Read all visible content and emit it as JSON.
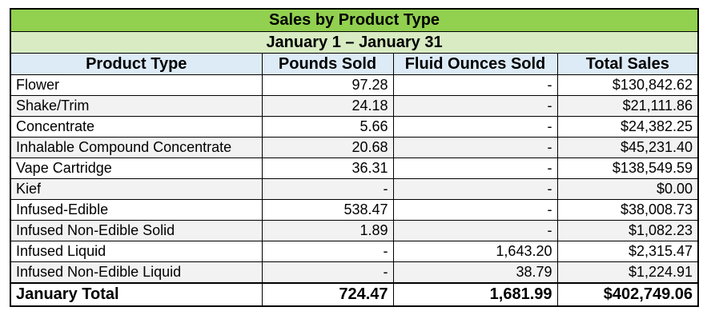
{
  "title": "Sales by Product Type",
  "subtitle": "January 1 – January 31",
  "columns": [
    "Product Type",
    "Pounds Sold",
    "Fluid Ounces Sold",
    "Total Sales"
  ],
  "rows": [
    {
      "product": "Flower",
      "pounds": "97.28",
      "fluid_oz": "-",
      "total": "$130,842.62"
    },
    {
      "product": "Shake/Trim",
      "pounds": "24.18",
      "fluid_oz": "-",
      "total": "$21,111.86"
    },
    {
      "product": "Concentrate",
      "pounds": "5.66",
      "fluid_oz": "-",
      "total": "$24,382.25"
    },
    {
      "product": "Inhalable Compound Concentrate",
      "pounds": "20.68",
      "fluid_oz": "-",
      "total": "$45,231.40"
    },
    {
      "product": "Vape Cartridge",
      "pounds": "36.31",
      "fluid_oz": "-",
      "total": "$138,549.59"
    },
    {
      "product": "Kief",
      "pounds": "-",
      "fluid_oz": "-",
      "total": "$0.00"
    },
    {
      "product": "Infused-Edible",
      "pounds": "538.47",
      "fluid_oz": "-",
      "total": "$38,008.73"
    },
    {
      "product": "Infused Non-Edible Solid",
      "pounds": "1.89",
      "fluid_oz": "-",
      "total": "$1,082.23"
    },
    {
      "product": "Infused Liquid",
      "pounds": "-",
      "fluid_oz": "1,643.20",
      "total": "$2,315.47"
    },
    {
      "product": "Infused Non-Edible Liquid",
      "pounds": "-",
      "fluid_oz": "38.79",
      "total": "$1,224.91"
    }
  ],
  "total": {
    "label": "January Total",
    "pounds": "724.47",
    "fluid_oz": "1,681.99",
    "total": "$402,749.06"
  },
  "colors": {
    "title_bg": "#92d050",
    "subtitle_bg": "#d8ebc2",
    "header_bg": "#ddebf7",
    "alt_row_bg": "#f2f2f2"
  }
}
